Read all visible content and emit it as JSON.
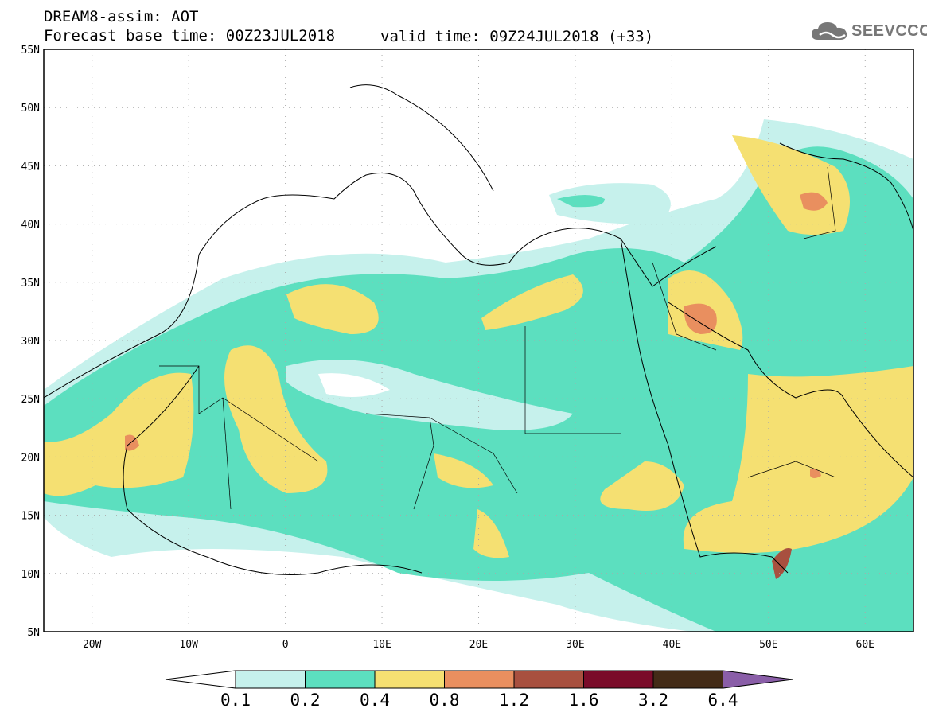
{
  "header": {
    "model_title": "DREAM8-assim: AOT",
    "base_time": "Forecast base time: 00Z23JUL2018",
    "valid_time": "valid time: 09Z24JUL2018 (+33)"
  },
  "logo": {
    "text": "SEEVCCC",
    "icon": "cloud-icon"
  },
  "map": {
    "lat_labels": [
      "55N",
      "50N",
      "45N",
      "40N",
      "35N",
      "30N",
      "25N",
      "20N",
      "15N",
      "10N",
      "5N"
    ],
    "lon_labels": [
      "20W",
      "10W",
      "0",
      "10E",
      "20E",
      "30E",
      "40E",
      "50E",
      "60E"
    ],
    "lon_range": [
      -25,
      65
    ],
    "lat_range": [
      5,
      55
    ],
    "gridlines": true
  },
  "colorbar": {
    "labels": [
      "0.1",
      "0.2",
      "0.4",
      "0.8",
      "1.2",
      "1.6",
      "3.2",
      "6.4"
    ],
    "colors": [
      "#c6f1ec",
      "#5cdfbf",
      "#f5e072",
      "#e98f5f",
      "#a8503f",
      "#7a0b29",
      "#432b17",
      "#8a5ea8"
    ],
    "outer_left_color": "#ffffff",
    "outer_right_color": "#8a5ea8"
  }
}
